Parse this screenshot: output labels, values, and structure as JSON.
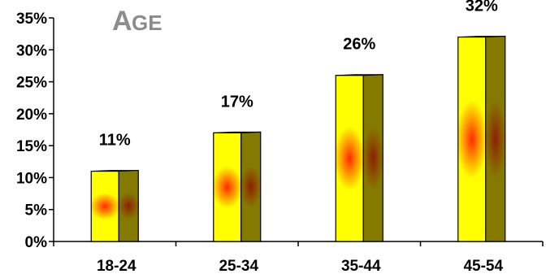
{
  "chart_data": {
    "type": "bar",
    "title": "Age",
    "categories": [
      "18-24",
      "25-34",
      "35-44",
      "45-54"
    ],
    "values": [
      11,
      17,
      26,
      32
    ],
    "data_labels": [
      "11%",
      "17%",
      "26%",
      "32%"
    ],
    "ylim": [
      0,
      35
    ],
    "yticks": [
      0,
      5,
      10,
      15,
      20,
      25,
      30,
      35
    ],
    "ytick_labels": [
      "0%",
      "5%",
      "10%",
      "15%",
      "20%",
      "25%",
      "30%",
      "35%"
    ],
    "xlabel": "",
    "ylabel": "",
    "grid": false,
    "legend": "none",
    "style": "3d-bar"
  },
  "colors": {
    "bar_front_edge": "#ffff00",
    "bar_front_center": "#ff3300",
    "bar_side_edge": "#8a7a00",
    "bar_side_center": "#8b2500",
    "bar_outline": "#000000",
    "title": "#8c8c8c",
    "axis": "#000000"
  }
}
